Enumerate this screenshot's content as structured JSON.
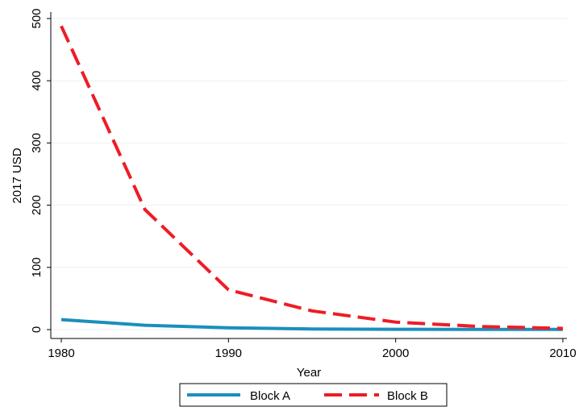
{
  "chart_data": {
    "type": "line",
    "title": "",
    "xlabel": "Year",
    "ylabel": "2017 USD",
    "xlim": [
      1980,
      2010
    ],
    "ylim": [
      0,
      500
    ],
    "x_ticks": [
      "1980",
      "1990",
      "2000",
      "2010"
    ],
    "y_ticks": [
      "0",
      "100",
      "200",
      "300",
      "400",
      "500"
    ],
    "grid": true,
    "legend_position": "bottom",
    "series": [
      {
        "name": "Block A",
        "color": "#1a8fbc",
        "style": "solid",
        "x": [
          1980,
          1985,
          1990,
          1995,
          2000,
          2005,
          2010
        ],
        "y": [
          16,
          7,
          3,
          1,
          0.5,
          0.3,
          0.2
        ]
      },
      {
        "name": "Block B",
        "color": "#ee1c25",
        "style": "dashed",
        "x": [
          1980,
          1985,
          1990,
          1995,
          2000,
          2005,
          2010
        ],
        "y": [
          488,
          193,
          64,
          30,
          12,
          5,
          2
        ]
      }
    ]
  }
}
